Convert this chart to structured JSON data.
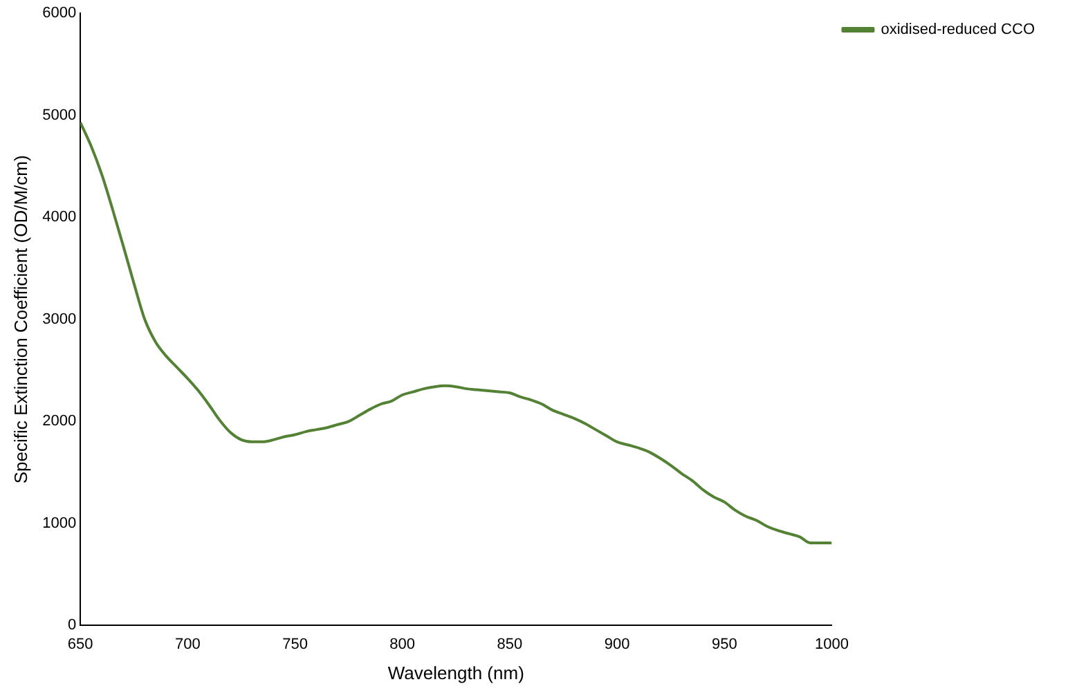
{
  "chart_data": {
    "type": "line",
    "xlabel": "Wavelength (nm)",
    "ylabel": "Specific Extinction Coefficient (OD/M/cm)",
    "xlim": [
      650,
      1000
    ],
    "xticks": [
      650,
      700,
      750,
      800,
      850,
      900,
      950,
      1000
    ],
    "ylim": [
      0,
      6000
    ],
    "yticks": [
      0,
      1000,
      2000,
      3000,
      4000,
      5000,
      6000
    ],
    "grid": false,
    "legend": "right",
    "marker": "none",
    "line_style": "solid",
    "x": [
      650,
      655,
      660,
      665,
      670,
      675,
      680,
      685,
      690,
      695,
      700,
      705,
      710,
      715,
      720,
      725,
      730,
      735,
      740,
      745,
      750,
      755,
      760,
      765,
      770,
      775,
      780,
      785,
      790,
      795,
      800,
      805,
      810,
      815,
      820,
      825,
      830,
      835,
      840,
      845,
      850,
      855,
      860,
      865,
      870,
      875,
      880,
      885,
      890,
      895,
      900,
      905,
      910,
      915,
      920,
      925,
      930,
      935,
      940,
      945,
      950,
      955,
      960,
      965,
      970,
      975,
      980,
      985,
      990,
      995,
      1000
    ],
    "series": [
      {
        "name": "oxidised-reduced CCO",
        "color": "#548235",
        "values": [
          4930,
          4700,
          4420,
          4080,
          3720,
          3350,
          3000,
          2780,
          2640,
          2530,
          2420,
          2300,
          2160,
          2010,
          1890,
          1820,
          1800,
          1800,
          1820,
          1850,
          1870,
          1900,
          1920,
          1940,
          1970,
          2000,
          2060,
          2120,
          2170,
          2200,
          2260,
          2290,
          2320,
          2340,
          2350,
          2340,
          2320,
          2310,
          2300,
          2290,
          2280,
          2240,
          2210,
          2170,
          2110,
          2070,
          2030,
          1980,
          1920,
          1860,
          1800,
          1770,
          1740,
          1700,
          1640,
          1570,
          1490,
          1420,
          1330,
          1260,
          1210,
          1130,
          1070,
          1030,
          970,
          930,
          900,
          870,
          810,
          810,
          810
        ]
      }
    ]
  }
}
